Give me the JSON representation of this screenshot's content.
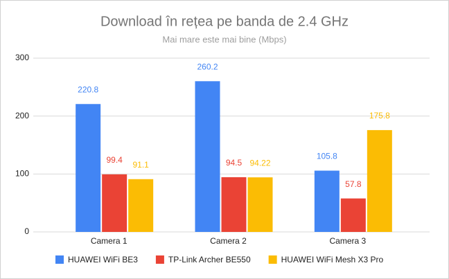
{
  "chart_data": {
    "type": "bar",
    "title": "Download în rețea pe banda de 2.4 GHz",
    "subtitle": "Mai mare este mai bine (Mbps)",
    "categories": [
      "Camera 1",
      "Camera 2",
      "Camera 3"
    ],
    "series": [
      {
        "name": "HUAWEI WiFi BE3",
        "color": "#4285f4",
        "values": [
          220.8,
          260.2,
          105.8
        ]
      },
      {
        "name": "TP-Link Archer BE550",
        "color": "#ea4335",
        "values": [
          99.4,
          94.5,
          57.8
        ]
      },
      {
        "name": "HUAWEI WiFi Mesh X3 Pro",
        "color": "#fbbc04",
        "values": [
          91.1,
          94.22,
          175.8
        ]
      }
    ],
    "ylim": [
      0,
      300
    ],
    "yticks": [
      0,
      100,
      200,
      300
    ],
    "grid": true,
    "legend": "bottom"
  }
}
